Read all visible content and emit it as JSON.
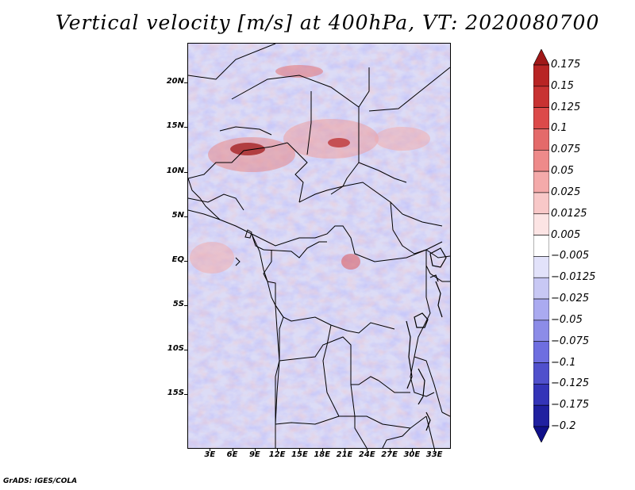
{
  "title": "Vertical velocity [m/s] at 400hPa, VT: 2020080700",
  "footer": "GrADS: IGES/COLA",
  "map": {
    "lat_range": [
      -21,
      24.5
    ],
    "lon_range": [
      0,
      35
    ],
    "lat_ticks": [
      {
        "value": 20,
        "label": "20N"
      },
      {
        "value": 15,
        "label": "15N"
      },
      {
        "value": 10,
        "label": "10N"
      },
      {
        "value": 5,
        "label": "5N"
      },
      {
        "value": 0,
        "label": "EQ"
      },
      {
        "value": -5,
        "label": "5S"
      },
      {
        "value": -10,
        "label": "10S"
      },
      {
        "value": -15,
        "label": "15S"
      }
    ],
    "lon_ticks": [
      {
        "value": 3,
        "label": "3E"
      },
      {
        "value": 6,
        "label": "6E"
      },
      {
        "value": 9,
        "label": "9E"
      },
      {
        "value": 12,
        "label": "12E"
      },
      {
        "value": 15,
        "label": "15E"
      },
      {
        "value": 18,
        "label": "18E"
      },
      {
        "value": 21,
        "label": "21E"
      },
      {
        "value": 24,
        "label": "24E"
      },
      {
        "value": 27,
        "label": "27E"
      },
      {
        "value": 30,
        "label": "30E"
      },
      {
        "value": 33,
        "label": "33E"
      }
    ]
  },
  "colorbar": {
    "labels": [
      "0.175",
      "0.15",
      "0.125",
      "0.1",
      "0.075",
      "0.05",
      "0.025",
      "0.0125",
      "0.005",
      "−0.005",
      "−0.0125",
      "−0.025",
      "−0.05",
      "−0.075",
      "−0.1",
      "−0.125",
      "−0.175",
      "−0.2"
    ],
    "colors": [
      "#a01818",
      "#b82424",
      "#c83232",
      "#dc4a4a",
      "#e46a6a",
      "#ee8a8a",
      "#f4aaaa",
      "#f8c8c8",
      "#fce4e4",
      "#ffffff",
      "#e2e2fa",
      "#c8c8f4",
      "#aaaaf0",
      "#8c8ce8",
      "#6e6ee0",
      "#5050cc",
      "#3434b8",
      "#2020a0",
      "#10108a"
    ]
  }
}
